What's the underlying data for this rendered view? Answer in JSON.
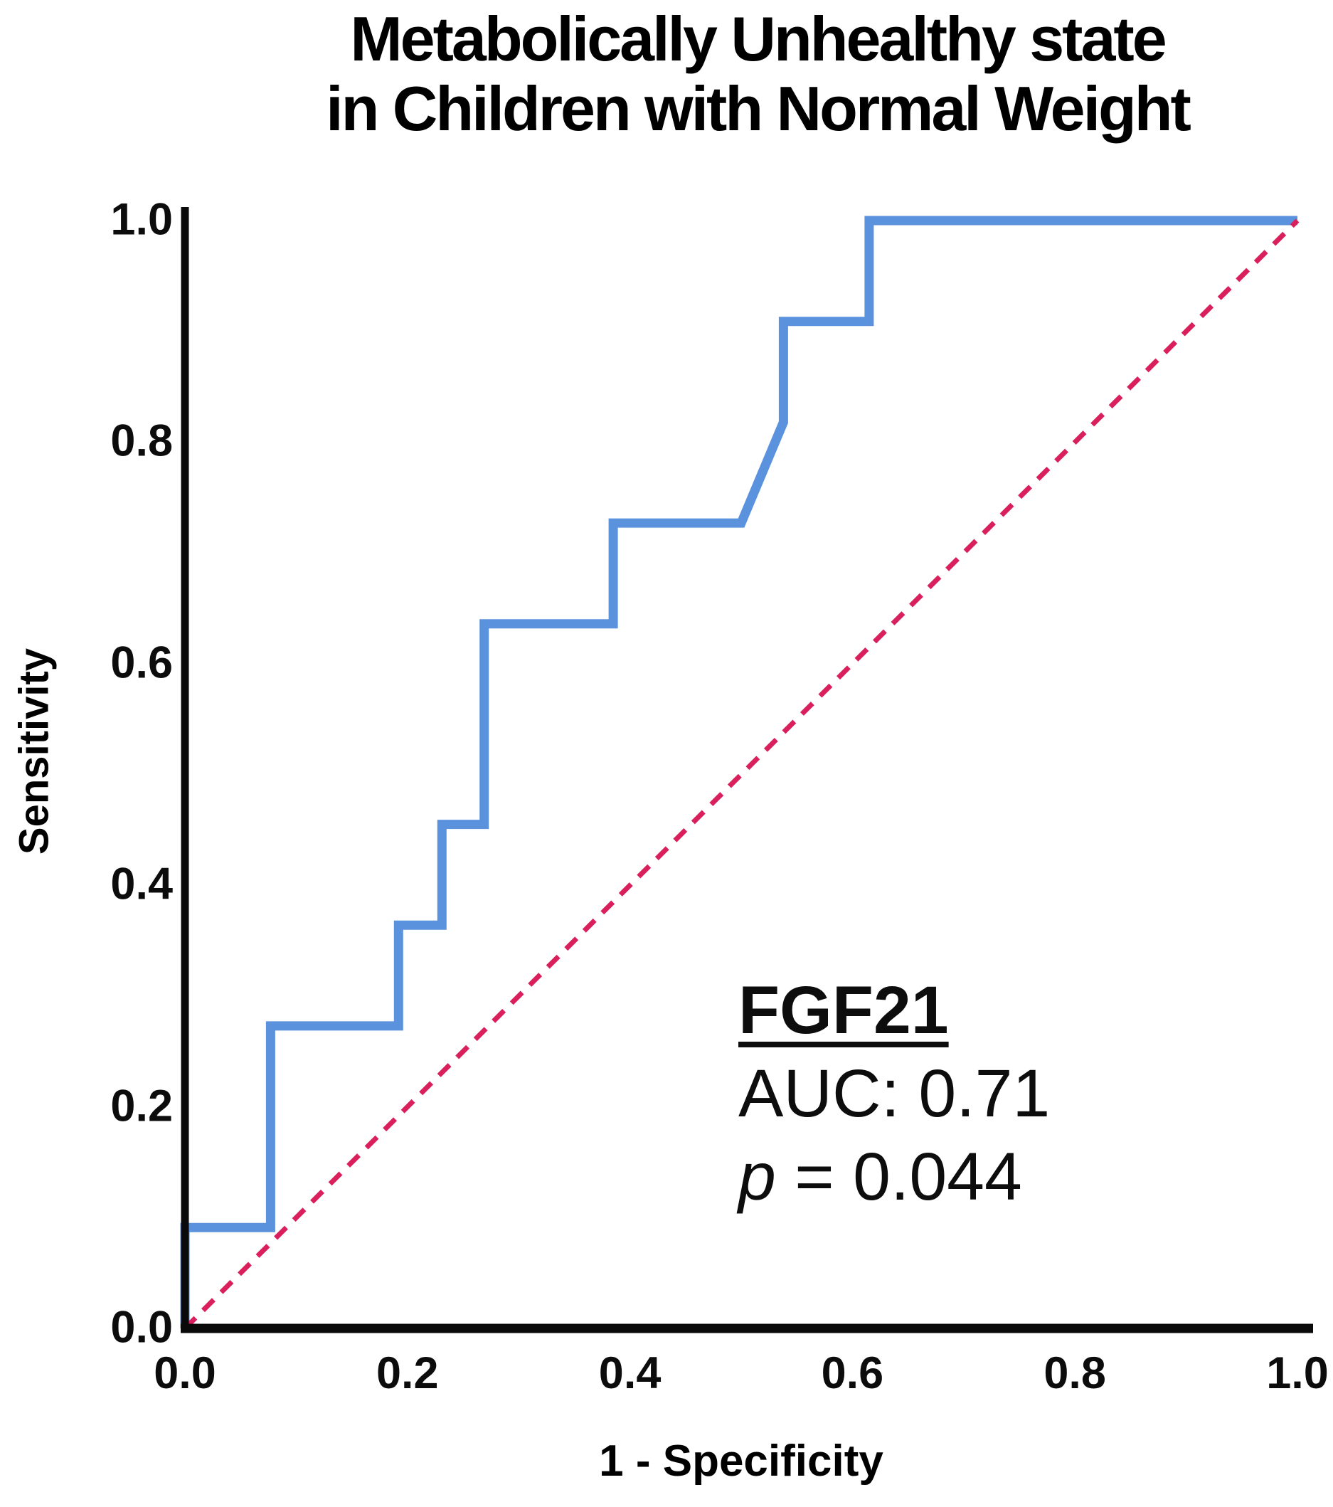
{
  "title": {
    "line1": "Metabolically Unhealthy state",
    "line2": "in Children with Normal Weight"
  },
  "axes": {
    "x": {
      "title": "1 - Specificity",
      "tick_labels": [
        "0.0",
        "0.2",
        "0.4",
        "0.6",
        "0.8",
        "1.0"
      ],
      "tick_values": [
        0,
        0.2,
        0.4,
        0.6,
        0.8,
        1.0
      ],
      "range": [
        0,
        1
      ]
    },
    "y": {
      "title": "Sensitivity",
      "tick_labels": [
        "0.0",
        "0.2",
        "0.4",
        "0.6",
        "0.8",
        "1.0"
      ],
      "tick_values": [
        0,
        0.2,
        0.4,
        0.6,
        0.8,
        1.0
      ],
      "range": [
        0,
        1
      ]
    }
  },
  "annotation": {
    "marker": "FGF21",
    "auc": "AUC: 0.71",
    "p_symbol": "p",
    "p_rest": " = 0.044"
  },
  "colors": {
    "roc_curve": "#5b92dd",
    "reference_line": "#d91f5c",
    "axis": "#0a0a0a",
    "text": "#000000"
  },
  "chart_data": {
    "type": "line",
    "title": "Metabolically Unhealthy state in Children with Normal Weight",
    "xlabel": "1 - Specificity",
    "ylabel": "Sensitivity",
    "xlim": [
      0,
      1
    ],
    "ylim": [
      0,
      1
    ],
    "grid": false,
    "legend": "none",
    "auc": 0.71,
    "p_value": 0.044,
    "series": [
      {
        "name": "FGF21 ROC curve",
        "color": "#5b92dd",
        "style": "solid",
        "points": [
          [
            0,
            0
          ],
          [
            0,
            0.091
          ],
          [
            0.077,
            0.091
          ],
          [
            0.077,
            0.273
          ],
          [
            0.192,
            0.273
          ],
          [
            0.192,
            0.364
          ],
          [
            0.231,
            0.364
          ],
          [
            0.231,
            0.455
          ],
          [
            0.269,
            0.455
          ],
          [
            0.269,
            0.636
          ],
          [
            0.385,
            0.636
          ],
          [
            0.385,
            0.727
          ],
          [
            0.5,
            0.727
          ],
          [
            0.538,
            0.818
          ],
          [
            0.538,
            0.909
          ],
          [
            0.615,
            0.909
          ],
          [
            0.615,
            1.0
          ],
          [
            1.0,
            1.0
          ]
        ]
      },
      {
        "name": "Reference diagonal",
        "color": "#d91f5c",
        "style": "dashed",
        "points": [
          [
            0,
            0
          ],
          [
            1,
            1
          ]
        ]
      }
    ]
  }
}
